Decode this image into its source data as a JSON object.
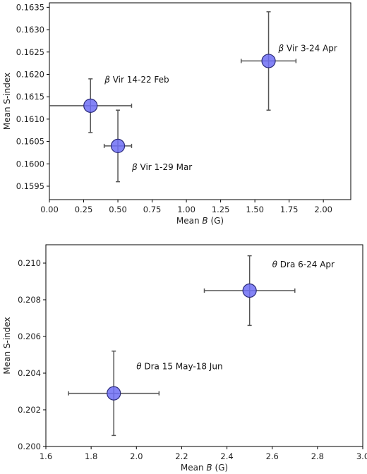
{
  "chart_data": [
    {
      "type": "scatter",
      "xlabel": "Mean B (G)",
      "ylabel": "Mean S-index",
      "xlim": [
        0.0,
        2.2
      ],
      "ylim": [
        0.1592,
        0.1636
      ],
      "xticks": [
        "0.00",
        "0.25",
        "0.50",
        "0.75",
        "1.00",
        "1.25",
        "1.50",
        "1.75",
        "2.00"
      ],
      "yticks": [
        "0.1595",
        "0.1600",
        "0.1605",
        "0.1610",
        "0.1615",
        "0.1620",
        "0.1625",
        "0.1630",
        "0.1635"
      ],
      "points": [
        {
          "label": "β Vir 14-22 Feb",
          "x": 0.3,
          "y": 0.1613,
          "xerr": 0.3,
          "yerr": 0.0006
        },
        {
          "label": "β Vir 1-29 Mar",
          "x": 0.5,
          "y": 0.1604,
          "xerr": 0.1,
          "yerr": 0.0008
        },
        {
          "label": "β Vir 3-24 Apr",
          "x": 1.6,
          "y": 0.1623,
          "xerr": 0.2,
          "yerr": 0.0011
        }
      ],
      "marker_color": "#6f6ff5",
      "grid": false
    },
    {
      "type": "scatter",
      "xlabel": "Mean B (G)",
      "ylabel": "Mean S-index",
      "xlim": [
        1.6,
        3.0
      ],
      "ylim": [
        0.2,
        0.211
      ],
      "xticks": [
        "1.6",
        "1.8",
        "2.0",
        "2.2",
        "2.4",
        "2.6",
        "2.8",
        "3.0"
      ],
      "yticks": [
        "0.200",
        "0.202",
        "0.204",
        "0.206",
        "0.208",
        "0.210"
      ],
      "points": [
        {
          "label": "θ Dra 15 May-18 Jun",
          "x": 1.9,
          "y": 0.2029,
          "xerr": 0.2,
          "yerr": 0.0023
        },
        {
          "label": "θ Dra 6-24 Apr",
          "x": 2.5,
          "y": 0.2085,
          "xerr": 0.2,
          "yerr": 0.0019
        }
      ],
      "marker_color": "#6f6ff5",
      "grid": false
    }
  ]
}
